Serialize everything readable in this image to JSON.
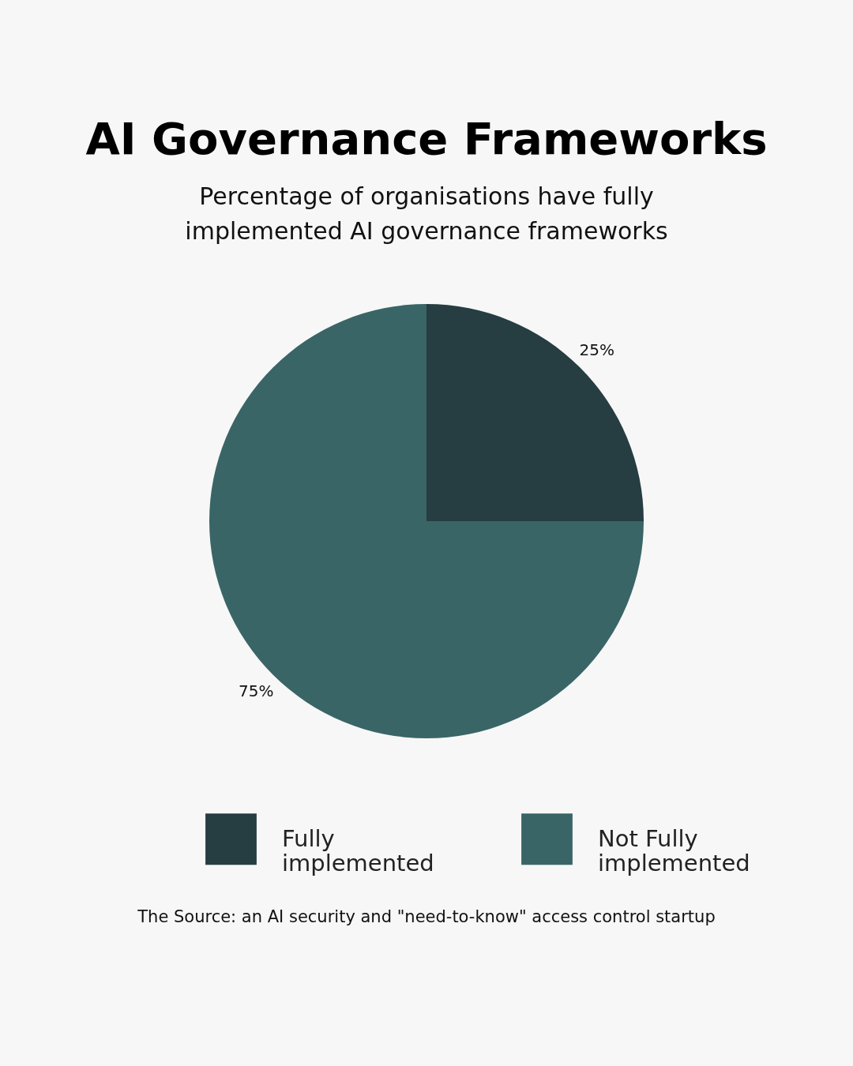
{
  "chart_data": {
    "type": "pie",
    "title": "AI Governance Frameworks",
    "subtitle": "Percentage of organisations have fully implemented AI governance frameworks",
    "categories": [
      "Fully implemented",
      "Not  Fully implemented"
    ],
    "values": [
      25,
      75
    ],
    "colors": [
      "#263d42",
      "#3a6566"
    ],
    "value_labels": [
      "25%",
      "75%"
    ],
    "legend": "bottom",
    "annotations": [
      "The Source: an AI security and \"need-to-know\" access control startup"
    ]
  }
}
